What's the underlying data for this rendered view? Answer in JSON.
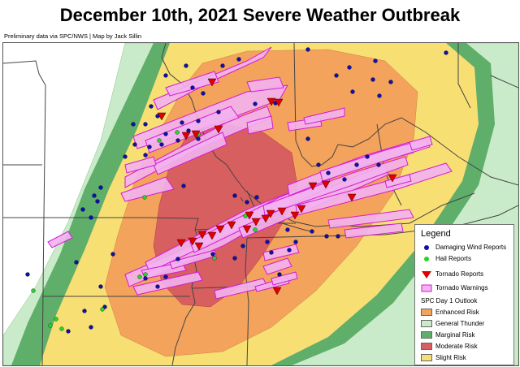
{
  "header": {
    "title": "December 10th, 2021 Severe Weather Outbreak",
    "credit": "Preliminary data via SPC/NWS | Map by Jack Sillin"
  },
  "colors": {
    "general_thunder": "#c9ebc9",
    "marginal": "#5fae6a",
    "slight": "#f8df74",
    "enhanced": "#f4a35c",
    "moderate": "#d85f5f",
    "tornado_warning_fill": "#f2b3f0",
    "tornado_warning_stroke": "#d61bd4",
    "wind_report": "#1010a8",
    "hail_report": "#28d428",
    "tornado_report": "#e00000",
    "state_border": "#444444"
  },
  "legend": {
    "title": "Legend",
    "items": [
      {
        "label": "Damaging Wind Reports",
        "symbol": "blue-dot-icon"
      },
      {
        "label": "Hail Reports",
        "symbol": "green-dot-icon"
      },
      {
        "label": "Tornado Reports",
        "symbol": "red-triangle-icon"
      },
      {
        "label": "Tornado Warnings",
        "symbol": "magenta-polygon-icon"
      }
    ],
    "outlook_title": "SPC Day 1 Outlook",
    "outlook_items": [
      {
        "label": "Enhanced Risk",
        "color": "#f4a35c"
      },
      {
        "label": "General Thunder",
        "color": "#c9ebc9"
      },
      {
        "label": "Marginal Risk",
        "color": "#5fae6a"
      },
      {
        "label": "Moderate Risk",
        "color": "#d85f5f"
      },
      {
        "label": "Slight Risk",
        "color": "#f8df74"
      }
    ]
  }
}
